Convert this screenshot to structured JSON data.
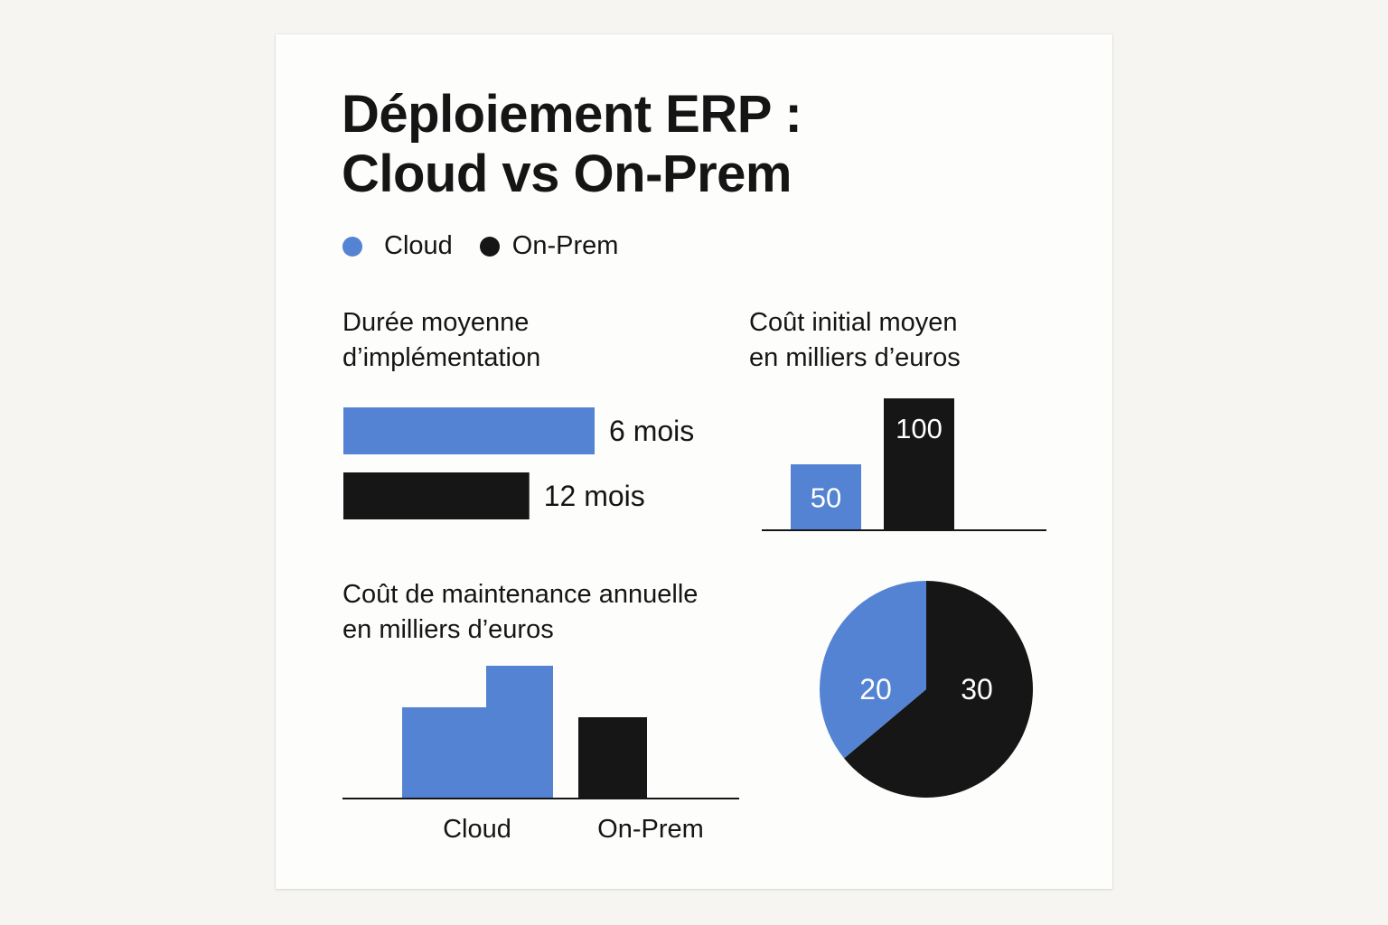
{
  "title": "Déploiement ERP :\nCloud vs On-Prem",
  "colors": {
    "cloud": "#5583d3",
    "onprem": "#161616",
    "axis": "#161616"
  },
  "legend": [
    {
      "label": "Cloud",
      "color": "#5583d3"
    },
    {
      "label": "On-Prem",
      "color": "#161616"
    }
  ],
  "chart_data": [
    {
      "type": "bar",
      "orientation": "horizontal",
      "title": "Durée moyenne\nd’implémentation",
      "categories": [
        "Cloud",
        "On-Prem"
      ],
      "values": [
        6,
        12
      ],
      "labels": [
        "6 mois",
        "12 mois"
      ]
    },
    {
      "type": "bar",
      "title": "Coût initial moyen\nen milliers d’euros",
      "categories": [
        "Cloud",
        "On-Prem"
      ],
      "values": [
        50,
        100
      ],
      "labels": [
        "50",
        "100"
      ]
    },
    {
      "type": "bar",
      "title": "Coût de maintenance annuelle\nen milliers d’euros",
      "categories": [
        "Cloud",
        "On-Prem"
      ],
      "tick_labels": [
        "Cloud",
        "On-Prem"
      ]
    },
    {
      "type": "pie",
      "categories": [
        "Cloud",
        "On-Prem"
      ],
      "values": [
        20,
        30
      ],
      "labels": [
        "20",
        "30"
      ]
    }
  ]
}
